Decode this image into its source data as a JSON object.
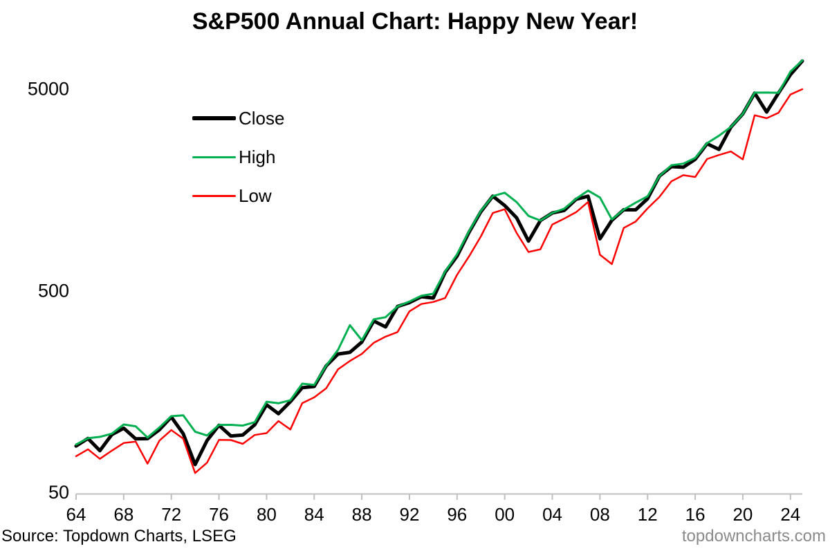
{
  "source": "Source: Topdown Charts, LSEG",
  "watermark": "topdowncharts.com",
  "legend": [
    {
      "label": "Close",
      "color": "#000000"
    },
    {
      "label": "High",
      "color": "#00B050"
    },
    {
      "label": "Low",
      "color": "#FF0000"
    }
  ],
  "chart_data": {
    "type": "line",
    "title": "S&P500 Annual Chart: Happy New Year!",
    "xlabel": "",
    "ylabel": "",
    "y_scale": "log",
    "grid": false,
    "legend_position": "upper-left-inside",
    "ylim": [
      50,
      7500
    ],
    "y_tick_labels": [
      "50",
      "500",
      "5000"
    ],
    "y_tick_values": [
      50,
      500,
      5000
    ],
    "x_tick_labels": [
      "64",
      "68",
      "72",
      "76",
      "80",
      "84",
      "88",
      "92",
      "96",
      "00",
      "04",
      "08",
      "12",
      "16",
      "20",
      "24"
    ],
    "x_tick_years": [
      1964,
      1968,
      1972,
      1976,
      1980,
      1984,
      1988,
      1992,
      1996,
      2000,
      2004,
      2008,
      2012,
      2016,
      2020,
      2024
    ],
    "x_range": [
      1964,
      2025
    ],
    "years": [
      1964,
      1965,
      1966,
      1967,
      1968,
      1969,
      1970,
      1971,
      1972,
      1973,
      1974,
      1975,
      1976,
      1977,
      1978,
      1979,
      1980,
      1981,
      1982,
      1983,
      1984,
      1985,
      1986,
      1987,
      1988,
      1989,
      1990,
      1991,
      1992,
      1993,
      1994,
      1995,
      1996,
      1997,
      1998,
      1999,
      2000,
      2001,
      2002,
      2003,
      2004,
      2005,
      2006,
      2007,
      2008,
      2009,
      2010,
      2011,
      2012,
      2013,
      2014,
      2015,
      2016,
      2017,
      2018,
      2019,
      2020,
      2021,
      2022,
      2023,
      2024,
      2025
    ],
    "series": [
      {
        "name": "Close",
        "color": "#000000",
        "stroke_width": 5,
        "values": [
          84.75,
          92.43,
          80.33,
          96.47,
          103.86,
          92.06,
          92.15,
          102.09,
          118.05,
          97.55,
          68.56,
          90.19,
          107.46,
          95.1,
          96.11,
          107.94,
          135.76,
          122.55,
          140.64,
          164.93,
          167.24,
          211.28,
          242.17,
          247.08,
          277.72,
          353.4,
          330.22,
          417.09,
          435.71,
          466.45,
          459.27,
          615.93,
          740.74,
          970.43,
          1229.23,
          1469.25,
          1320.28,
          1148.08,
          879.82,
          1111.92,
          1211.92,
          1248.29,
          1418.3,
          1468.36,
          903.25,
          1115.1,
          1257.64,
          1257.6,
          1426.19,
          1848.36,
          2058.9,
          2043.94,
          2238.83,
          2673.61,
          2506.85,
          3230.78,
          3756.07,
          4766.18,
          3839.5,
          4769.83,
          5881.63,
          6880.0
        ]
      },
      {
        "name": "High",
        "color": "#00B050",
        "stroke_width": 3,
        "values": [
          86.28,
          92.63,
          94.06,
          97.59,
          108.37,
          106.16,
          93.46,
          104.77,
          119.12,
          120.24,
          99.8,
          95.61,
          107.83,
          107.97,
          106.99,
          111.27,
          140.52,
          138.12,
          143.02,
          172.65,
          170.41,
          212.02,
          254.0,
          336.77,
          283.66,
          359.8,
          368.95,
          417.09,
          441.28,
          470.94,
          482.0,
          621.69,
          757.03,
          983.79,
          1241.81,
          1469.25,
          1527.46,
          1373.73,
          1172.51,
          1111.92,
          1213.55,
          1272.74,
          1427.09,
          1565.15,
          1447.16,
          1127.78,
          1259.78,
          1363.61,
          1465.77,
          1848.36,
          2090.57,
          2130.82,
          2271.72,
          2690.16,
          2930.75,
          3240.02,
          3756.07,
          4793.06,
          4796.56,
          4783.35,
          6090.27,
          6920.0
        ]
      },
      {
        "name": "Low",
        "color": "#FF0000",
        "stroke_width": 2.5,
        "values": [
          75.43,
          81.6,
          73.2,
          80.38,
          87.72,
          89.2,
          69.29,
          90.16,
          101.67,
          92.16,
          62.28,
          70.04,
          90.9,
          90.71,
          86.9,
          96.13,
          98.22,
          112.77,
          102.42,
          138.34,
          147.82,
          163.68,
          203.49,
          223.92,
          242.63,
          275.31,
          295.46,
          311.49,
          394.5,
          429.05,
          438.92,
          459.11,
          598.48,
          737.01,
          927.69,
          1212.19,
          1264.74,
          965.8,
          776.76,
          800.73,
          1063.23,
          1137.5,
          1223.69,
          1374.12,
          752.44,
          676.53,
          1022.58,
          1099.23,
          1277.06,
          1457.15,
          1741.89,
          1867.61,
          1829.08,
          2245.13,
          2351.1,
          2447.89,
          2237.4,
          3700.65,
          3577.03,
          3808.1,
          4688.68,
          4982.77
        ]
      }
    ],
    "axis_color": "#BFBFBF"
  }
}
